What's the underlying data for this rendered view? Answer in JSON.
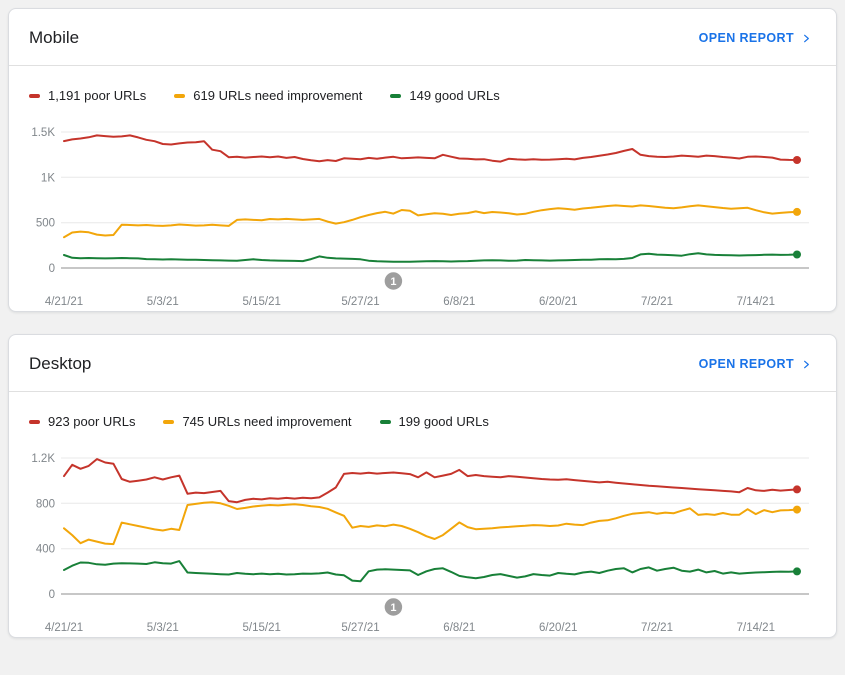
{
  "page": {
    "background": "#f1f1f1"
  },
  "cards": [
    {
      "title": "Mobile",
      "open_report_label": "OPEN REPORT",
      "legend": [
        {
          "label": "1,191 poor URLs",
          "color": "#c5342b"
        },
        {
          "label": "619 URLs need improvement",
          "color": "#f2a60a"
        },
        {
          "label": "149 good URLs",
          "color": "#188038"
        }
      ],
      "chart": {
        "type": "line",
        "ymax": 1500,
        "y_ticks": [
          {
            "label": "1.5K",
            "value": 1500
          },
          {
            "label": "1K",
            "value": 1000
          },
          {
            "label": "500",
            "value": 500
          },
          {
            "label": "0",
            "value": 0
          }
        ],
        "x_ticks": [
          {
            "label": "4/21/21",
            "day": 0
          },
          {
            "label": "5/3/21",
            "day": 12
          },
          {
            "label": "5/15/21",
            "day": 24
          },
          {
            "label": "5/27/21",
            "day": 36
          },
          {
            "label": "6/8/21",
            "day": 48
          },
          {
            "label": "6/20/21",
            "day": 60
          },
          {
            "label": "7/2/21",
            "day": 72
          },
          {
            "label": "7/14/21",
            "day": 84
          }
        ],
        "marker": {
          "label": "1",
          "day": 40
        },
        "series": [
          {
            "name": "poor URLs",
            "color": "#c5342b",
            "values": [
              1400,
              1418,
              1428,
              1442,
              1462,
              1455,
              1448,
              1452,
              1462,
              1440,
              1414,
              1398,
              1368,
              1362,
              1374,
              1384,
              1386,
              1398,
              1305,
              1288,
              1222,
              1228,
              1218,
              1224,
              1230,
              1222,
              1230,
              1214,
              1224,
              1202,
              1188,
              1178,
              1190,
              1180,
              1210,
              1204,
              1200,
              1214,
              1204,
              1218,
              1226,
              1210,
              1214,
              1220,
              1214,
              1210,
              1248,
              1228,
              1208,
              1204,
              1198,
              1200,
              1184,
              1174,
              1204,
              1198,
              1194,
              1200,
              1194,
              1196,
              1200,
              1206,
              1198,
              1214,
              1224,
              1238,
              1252,
              1268,
              1292,
              1312,
              1248,
              1234,
              1228,
              1224,
              1230,
              1240,
              1234,
              1228,
              1240,
              1234,
              1224,
              1218,
              1208,
              1226,
              1230,
              1224,
              1218,
              1196,
              1192,
              1191
            ]
          },
          {
            "name": "URLs need improvement",
            "color": "#f2a60a",
            "values": [
              340,
              392,
              402,
              394,
              368,
              358,
              364,
              478,
              474,
              470,
              474,
              468,
              464,
              470,
              480,
              474,
              468,
              470,
              476,
              470,
              464,
              530,
              536,
              530,
              526,
              540,
              536,
              542,
              536,
              530,
              536,
              542,
              512,
              490,
              505,
              530,
              560,
              585,
              605,
              620,
              600,
              640,
              632,
              580,
              592,
              604,
              598,
              585,
              598,
              606,
              624,
              606,
              618,
              612,
              604,
              590,
              598,
              620,
              638,
              650,
              660,
              652,
              642,
              656,
              664,
              674,
              684,
              690,
              684,
              678,
              690,
              684,
              674,
              664,
              658,
              668,
              680,
              690,
              682,
              672,
              662,
              654,
              660,
              664,
              638,
              614,
              600,
              608,
              614,
              619
            ]
          },
          {
            "name": "good URLs",
            "color": "#188038",
            "values": [
              143,
              112,
              108,
              110,
              108,
              106,
              108,
              110,
              108,
              106,
              98,
              96,
              94,
              96,
              94,
              92,
              90,
              88,
              86,
              84,
              82,
              80,
              88,
              96,
              88,
              84,
              82,
              80,
              78,
              76,
              98,
              128,
              112,
              106,
              104,
              100,
              96,
              80,
              74,
              72,
              70,
              70,
              68,
              72,
              74,
              76,
              74,
              72,
              74,
              76,
              80,
              84,
              86,
              84,
              80,
              82,
              88,
              86,
              84,
              82,
              84,
              86,
              88,
              90,
              92,
              96,
              98,
              96,
              100,
              110,
              150,
              158,
              148,
              144,
              140,
              136,
              152,
              162,
              150,
              144,
              142,
              140,
              138,
              140,
              142,
              146,
              148,
              144,
              146,
              149
            ]
          }
        ]
      }
    },
    {
      "title": "Desktop",
      "open_report_label": "OPEN REPORT",
      "legend": [
        {
          "label": "923 poor URLs",
          "color": "#c5342b"
        },
        {
          "label": "745 URLs need improvement",
          "color": "#f2a60a"
        },
        {
          "label": "199 good URLs",
          "color": "#188038"
        }
      ],
      "chart": {
        "type": "line",
        "ymax": 1200,
        "y_ticks": [
          {
            "label": "1.2K",
            "value": 1200
          },
          {
            "label": "800",
            "value": 800
          },
          {
            "label": "400",
            "value": 400
          },
          {
            "label": "0",
            "value": 0
          }
        ],
        "x_ticks": [
          {
            "label": "4/21/21",
            "day": 0
          },
          {
            "label": "5/3/21",
            "day": 12
          },
          {
            "label": "5/15/21",
            "day": 24
          },
          {
            "label": "5/27/21",
            "day": 36
          },
          {
            "label": "6/8/21",
            "day": 48
          },
          {
            "label": "6/20/21",
            "day": 60
          },
          {
            "label": "7/2/21",
            "day": 72
          },
          {
            "label": "7/14/21",
            "day": 84
          }
        ],
        "marker": {
          "label": "1",
          "day": 40
        },
        "series": [
          {
            "name": "poor URLs",
            "color": "#c5342b",
            "values": [
              1040,
              1140,
              1105,
              1130,
              1190,
              1160,
              1150,
              1015,
              990,
              1000,
              1010,
              1030,
              1010,
              1030,
              1045,
              885,
              895,
              890,
              900,
              910,
              820,
              810,
              830,
              840,
              835,
              845,
              840,
              848,
              842,
              850,
              845,
              852,
              895,
              940,
              1060,
              1068,
              1062,
              1070,
              1062,
              1068,
              1072,
              1065,
              1058,
              1030,
              1073,
              1030,
              1045,
              1060,
              1095,
              1040,
              1050,
              1040,
              1035,
              1030,
              1040,
              1035,
              1028,
              1022,
              1015,
              1010,
              1008,
              1012,
              1005,
              998,
              992,
              985,
              990,
              982,
              975,
              968,
              962,
              955,
              950,
              945,
              940,
              935,
              930,
              925,
              920,
              915,
              910,
              905,
              898,
              935,
              915,
              910,
              920,
              912,
              918,
              923
            ]
          },
          {
            "name": "URLs need improvement",
            "color": "#f2a60a",
            "values": [
              580,
              520,
              448,
              480,
              462,
              445,
              440,
              630,
              615,
              600,
              585,
              570,
              560,
              575,
              565,
              785,
              795,
              805,
              810,
              800,
              778,
              750,
              760,
              772,
              780,
              785,
              782,
              788,
              792,
              785,
              775,
              768,
              752,
              720,
              690,
              585,
              600,
              592,
              605,
              598,
              612,
              600,
              575,
              545,
              510,
              485,
              520,
              575,
              632,
              590,
              572,
              575,
              580,
              588,
              592,
              598,
              602,
              608,
              605,
              600,
              604,
              620,
              612,
              608,
              630,
              645,
              650,
              668,
              690,
              708,
              715,
              722,
              708,
              718,
              712,
              735,
              755,
              698,
              705,
              698,
              715,
              700,
              700,
              748,
              705,
              740,
              722,
              738,
              740,
              745
            ]
          },
          {
            "name": "good URLs",
            "color": "#188038",
            "values": [
              212,
              250,
              278,
              275,
              262,
              258,
              268,
              272,
              270,
              268,
              265,
              280,
              272,
              268,
              290,
              190,
              185,
              182,
              178,
              175,
              172,
              185,
              178,
              175,
              180,
              175,
              178,
              172,
              175,
              180,
              178,
              182,
              190,
              172,
              165,
              118,
              112,
              200,
              215,
              218,
              215,
              212,
              208,
              168,
              200,
              221,
              227,
              195,
              160,
              147,
              139,
              150,
              168,
              176,
              160,
              145,
              155,
              176,
              168,
              162,
              185,
              178,
              173,
              190,
              198,
              185,
              206,
              221,
              227,
              191,
              221,
              235,
              206,
              221,
              232,
              206,
              198,
              215,
              191,
              203,
              180,
              191,
              180,
              185,
              190,
              192,
              195,
              198,
              196,
              199
            ]
          }
        ]
      }
    }
  ],
  "chart_style": {
    "gridline_color": "#e8e8e8",
    "zero_line_color": "#8f8f8f",
    "axis_label_color": "#80868b",
    "marker_fill": "#9e9e9e",
    "link_color": "#1a73e8"
  }
}
